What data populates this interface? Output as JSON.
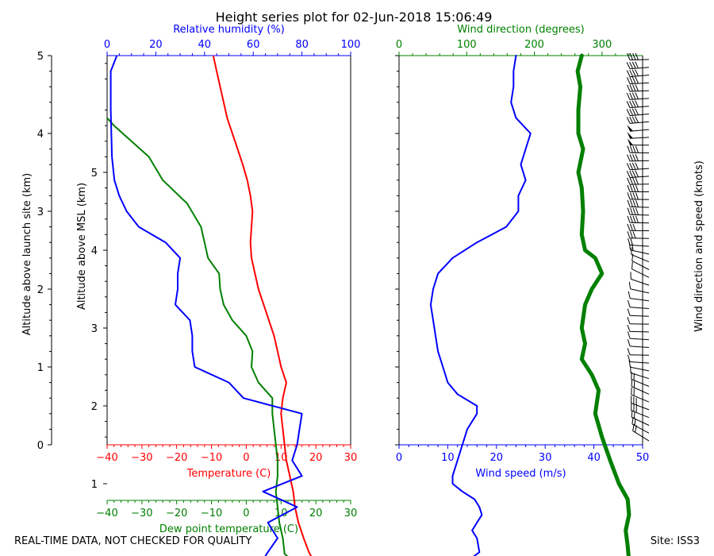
{
  "title": "Height series plot for 02-Jun-2018 15:06:49",
  "footer_left": "REAL-TIME DATA, NOT CHECKED FOR QUALITY",
  "footer_right": "Site: ISS3",
  "colors": {
    "temperature": "#ff0000",
    "dewpoint": "#008000",
    "humidity": "#0000ff",
    "wind_speed": "#0000ff",
    "wind_direction": "#008000",
    "barbs": "#000000",
    "axes": "#000000"
  },
  "chart_data": [
    {
      "type": "line",
      "name": "thermo",
      "axis_left_outer": {
        "label": "Altitude above launch site (km)",
        "range": [
          0,
          5
        ],
        "ticks": [
          "0",
          "1",
          "2",
          "3",
          "4",
          "5"
        ]
      },
      "axis_left_inner": {
        "label": "Altitude above MSL (km)",
        "range": [
          1.5,
          6.5
        ],
        "ticks": [
          "1",
          "2",
          "3",
          "4",
          "5"
        ]
      },
      "axis_bottom": {
        "label": "Temperature (C)",
        "range": [
          -40,
          30
        ],
        "ticks": [
          "−40",
          "−30",
          "−20",
          "−10",
          "0",
          "10",
          "20",
          "30"
        ]
      },
      "axis_bottom2": {
        "label": "Dew point temperature (C)",
        "range": [
          -40,
          30
        ],
        "ticks": [
          "−40",
          "−30",
          "−20",
          "−10",
          "0",
          "10",
          "20",
          "30"
        ]
      },
      "axis_top": {
        "label": "Relative humidity (%)",
        "range": [
          0,
          100
        ],
        "ticks": [
          "0",
          "20",
          "40",
          "60",
          "80",
          "100"
        ]
      },
      "grid": false,
      "series": [
        {
          "key": "temperature",
          "axis": "temperature",
          "points": [
            [
              19.5,
              0
            ],
            [
              18,
              0.12
            ],
            [
              16.5,
              0.3
            ],
            [
              15,
              0.5
            ],
            [
              14,
              0.7
            ],
            [
              13.5,
              0.9
            ],
            [
              12.5,
              1.1
            ],
            [
              11.5,
              1.3
            ],
            [
              11,
              1.5
            ],
            [
              10.5,
              1.7
            ],
            [
              10,
              1.9
            ],
            [
              10.5,
              2.1
            ],
            [
              11.5,
              2.3
            ],
            [
              10,
              2.5
            ],
            [
              9,
              2.7
            ],
            [
              8,
              2.9
            ],
            [
              6.5,
              3.1
            ],
            [
              5,
              3.3
            ],
            [
              3.5,
              3.5
            ],
            [
              2.5,
              3.7
            ],
            [
              1.5,
              3.9
            ],
            [
              1.2,
              4.1
            ],
            [
              1.5,
              4.3
            ],
            [
              1.8,
              4.5
            ],
            [
              1.2,
              4.7
            ],
            [
              0.3,
              4.9
            ],
            [
              -1,
              5.1
            ],
            [
              -2.5,
              5.3
            ],
            [
              -4,
              5.5
            ],
            [
              -5.5,
              5.7
            ],
            [
              -6.5,
              5.9
            ],
            [
              -7.5,
              6.1
            ],
            [
              -8.5,
              6.3
            ],
            [
              -9.5,
              6.5
            ]
          ]
        },
        {
          "key": "dewpoint",
          "axis": "temperature",
          "points": [
            [
              13,
              0.02
            ],
            [
              11,
              0.1
            ],
            [
              10.5,
              0.3
            ],
            [
              9.5,
              0.5
            ],
            [
              9,
              0.7
            ],
            [
              8.5,
              0.9
            ],
            [
              9,
              1.1
            ],
            [
              9,
              1.3
            ],
            [
              8.5,
              1.5
            ],
            [
              8,
              1.7
            ],
            [
              7.5,
              1.9
            ],
            [
              7.5,
              2.1
            ],
            [
              3.5,
              2.3
            ],
            [
              1.5,
              2.5
            ],
            [
              1.8,
              2.7
            ],
            [
              0,
              2.9
            ],
            [
              -4,
              3.1
            ],
            [
              -6.5,
              3.3
            ],
            [
              -7.5,
              3.5
            ],
            [
              -7.8,
              3.7
            ],
            [
              -11,
              3.9
            ],
            [
              -12,
              4.1
            ],
            [
              -13,
              4.3
            ],
            [
              -17,
              4.6
            ],
            [
              -24,
              4.9
            ],
            [
              -28,
              5.2
            ],
            [
              -33,
              5.4
            ],
            [
              -38,
              5.6
            ],
            [
              -40,
              5.7
            ]
          ]
        },
        {
          "key": "humidity",
          "axis": "humidity",
          "points": [
            [
              64,
              0.02
            ],
            [
              66,
              0.12
            ],
            [
              70,
              0.3
            ],
            [
              66,
              0.5
            ],
            [
              78,
              0.7
            ],
            [
              64,
              0.9
            ],
            [
              80,
              1.1
            ],
            [
              76,
              1.3
            ],
            [
              78,
              1.5
            ],
            [
              79,
              1.7
            ],
            [
              80,
              1.9
            ],
            [
              56,
              2.1
            ],
            [
              50,
              2.3
            ],
            [
              36,
              2.5
            ],
            [
              35,
              2.7
            ],
            [
              35,
              2.9
            ],
            [
              34,
              3.1
            ],
            [
              28,
              3.3
            ],
            [
              29,
              3.5
            ],
            [
              29,
              3.7
            ],
            [
              30,
              3.9
            ],
            [
              24,
              4.1
            ],
            [
              13,
              4.3
            ],
            [
              8,
              4.5
            ],
            [
              5,
              4.7
            ],
            [
              3,
              4.9
            ],
            [
              2,
              5.2
            ],
            [
              1.5,
              5.8
            ],
            [
              1.5,
              6.3
            ],
            [
              4,
              6.5
            ]
          ]
        }
      ]
    },
    {
      "type": "line",
      "name": "wind",
      "axis_bottom": {
        "label": "Wind speed (m/s)",
        "range": [
          0,
          50
        ],
        "ticks": [
          "0",
          "10",
          "20",
          "30",
          "40",
          "50"
        ]
      },
      "axis_top": {
        "label": "Wind direction (degrees)",
        "range": [
          0,
          360
        ],
        "ticks": [
          "0",
          "100",
          "200",
          "300"
        ]
      },
      "axis_right": {
        "label": "Wind direction and speed (knots)"
      },
      "range_y": [
        0,
        5
      ],
      "grid": false,
      "series": [
        {
          "key": "wind_speed",
          "axis": "speed",
          "points": [
            [
              7,
              0
            ],
            [
              15,
              0.05
            ],
            [
              16.5,
              0.12
            ],
            [
              16,
              0.3
            ],
            [
              15,
              0.4
            ],
            [
              16,
              0.5
            ],
            [
              17,
              0.6
            ],
            [
              16.5,
              0.7
            ],
            [
              15.5,
              0.8
            ],
            [
              13,
              0.9
            ],
            [
              11,
              1.0
            ],
            [
              11,
              1.1
            ],
            [
              12,
              1.3
            ],
            [
              13,
              1.5
            ],
            [
              14,
              1.7
            ],
            [
              16,
              1.9
            ],
            [
              16,
              2.0
            ],
            [
              12,
              2.15
            ],
            [
              10,
              2.3
            ],
            [
              9,
              2.5
            ],
            [
              8,
              2.7
            ],
            [
              7.5,
              2.9
            ],
            [
              7,
              3.1
            ],
            [
              6.5,
              3.3
            ],
            [
              7,
              3.5
            ],
            [
              8,
              3.7
            ],
            [
              11,
              3.9
            ],
            [
              16,
              4.1
            ],
            [
              22,
              4.3
            ],
            [
              24.5,
              4.5
            ],
            [
              24.5,
              4.7
            ],
            [
              26,
              4.9
            ],
            [
              25,
              5.1
            ],
            [
              26,
              5.3
            ],
            [
              27,
              5.5
            ],
            [
              24,
              5.7
            ],
            [
              23,
              5.9
            ],
            [
              23.5,
              6.1
            ],
            [
              23.5,
              6.3
            ],
            [
              24,
              6.5
            ]
          ]
        },
        {
          "key": "wind_direction",
          "axis": "direction",
          "points": [
            [
              340,
              0
            ],
            [
              338,
              0.2
            ],
            [
              335,
              0.4
            ],
            [
              340,
              0.6
            ],
            [
              338,
              0.8
            ],
            [
              325,
              1.0
            ],
            [
              312,
              1.3
            ],
            [
              300,
              1.6
            ],
            [
              290,
              1.9
            ],
            [
              295,
              2.2
            ],
            [
              285,
              2.4
            ],
            [
              270,
              2.6
            ],
            [
              275,
              2.8
            ],
            [
              270,
              3.0
            ],
            [
              275,
              3.3
            ],
            [
              285,
              3.5
            ],
            [
              300,
              3.7
            ],
            [
              290,
              3.9
            ],
            [
              275,
              4.0
            ],
            [
              270,
              4.2
            ],
            [
              272,
              4.5
            ],
            [
              270,
              4.8
            ],
            [
              265,
              5.0
            ],
            [
              272,
              5.3
            ],
            [
              265,
              5.5
            ],
            [
              265,
              5.8
            ],
            [
              268,
              6.1
            ],
            [
              264,
              6.3
            ],
            [
              270,
              6.5
            ]
          ]
        }
      ]
    }
  ]
}
